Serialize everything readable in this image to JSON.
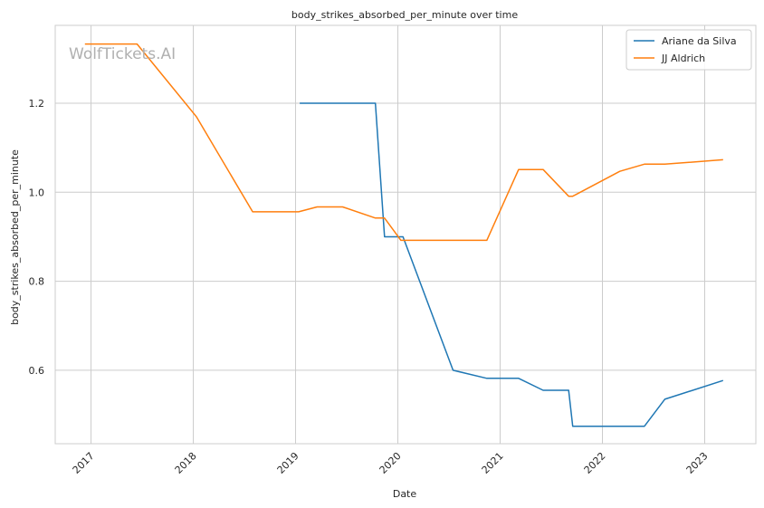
{
  "chart_data": {
    "type": "line",
    "title": "body_strikes_absorbed_per_minute over time",
    "xlabel": "Date",
    "ylabel": "body_strikes_absorbed_per_minute",
    "watermark": "WolfTickets.AI",
    "x_ticks": [
      "2017",
      "2018",
      "2019",
      "2020",
      "2021",
      "2022",
      "2023"
    ],
    "y_ticks": [
      "0.6",
      "0.8",
      "1.0",
      "1.2"
    ],
    "xlim": [
      2016.65,
      2023.5
    ],
    "ylim": [
      0.435,
      1.375
    ],
    "grid": true,
    "legend_position": "top-right",
    "series": [
      {
        "name": "Ariane da Silva",
        "color": "#1f77b4",
        "x": [
          2019.04,
          2019.78,
          2019.87,
          2020.05,
          2020.54,
          2020.87,
          2021.18,
          2021.42,
          2021.67,
          2021.71,
          2022.41,
          2022.61,
          2023.18
        ],
        "y": [
          1.2,
          1.2,
          0.9,
          0.9,
          0.6,
          0.582,
          0.582,
          0.555,
          0.555,
          0.474,
          0.474,
          0.535,
          0.577
        ]
      },
      {
        "name": "JJ Aldrich",
        "color": "#ff7f0e",
        "x": [
          2016.94,
          2017.45,
          2018.03,
          2018.58,
          2019.03,
          2019.21,
          2019.46,
          2019.78,
          2019.87,
          2020.03,
          2020.87,
          2021.18,
          2021.42,
          2021.67,
          2021.71,
          2022.17,
          2022.41,
          2022.61,
          2023.18
        ],
        "y": [
          1.333,
          1.333,
          1.17,
          0.956,
          0.956,
          0.967,
          0.967,
          0.942,
          0.942,
          0.892,
          0.892,
          1.051,
          1.051,
          0.991,
          0.991,
          1.047,
          1.063,
          1.063,
          1.073
        ]
      }
    ]
  }
}
